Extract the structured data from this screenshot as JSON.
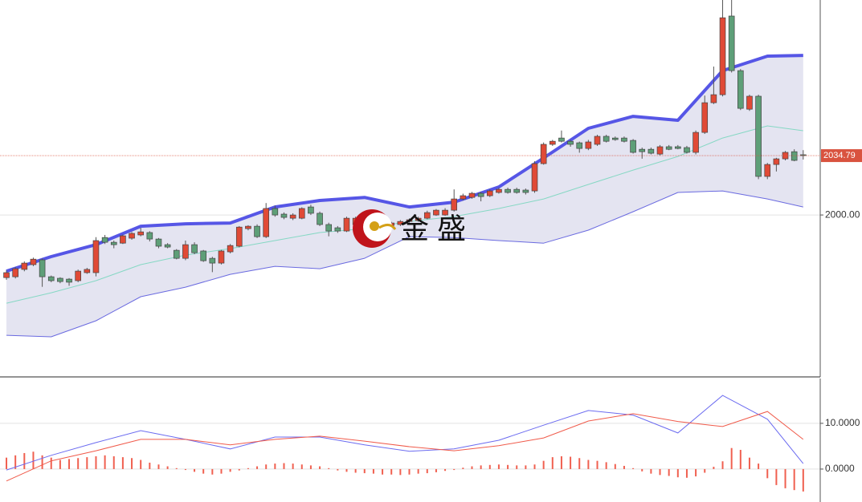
{
  "chart_data": [
    {
      "type": "candlestick",
      "watermark": "金 盛",
      "up_color": "#e04a36",
      "down_color": "#5e9f78",
      "open": [
        1963.3,
        1963.8,
        1968.1,
        1970.9,
        1973.7,
        1963.8,
        1962.9,
        1962.4,
        1961.5,
        1966.2,
        1966.2,
        1986.8,
        1984.0,
        1983.5,
        1986.4,
        1988.3,
        1989.7,
        1985.9,
        1982.6,
        1979.3,
        1974.6,
        1982.6,
        1978.9,
        1974.6,
        1971.8,
        1978.4,
        1981.7,
        1992.0,
        1993.4,
        1987.3,
        2003.8,
        2000.5,
        1998.1,
        1998.1,
        2004.7,
        2001.0,
        1994.4,
        1992.5,
        1990.6,
        1994.4,
        1996.7,
        1995.3,
        1993.4,
        1993.9,
        1994.4,
        1996.2,
        1996.7,
        1998.1,
        2000.0,
        2000.0,
        2002.8,
        2009.4,
        2010.3,
        2012.7,
        2011.3,
        2013.2,
        2015.0,
        2015.0,
        2014.6,
        2014.1,
        2030.1,
        2041.4,
        2045.1,
        2043.2,
        2042.3,
        2039.0,
        2041.4,
        2046.1,
        2045.1,
        2045.1,
        2043.7,
        2038.5,
        2038.5,
        2035.7,
        2040.0,
        2040.0,
        2039.5,
        2036.7,
        2048.4,
        2065.8,
        2070.5,
        2116.6,
        2084.6,
        2062.0,
        2069.6,
        2022.6,
        2029.6,
        2032.9,
        2037.1,
        2035.3
      ],
      "high": [
        1967.5,
        1969.5,
        1972.8,
        1975.0,
        1974.5,
        1964.5,
        1963.5,
        1963.0,
        1968.0,
        1969.0,
        1987.0,
        1988.3,
        1985.0,
        1988.5,
        1990.0,
        1992.5,
        1990.5,
        1986.5,
        1983.5,
        1980.0,
        1985.0,
        1984.0,
        1979.5,
        1975.5,
        1979.5,
        1983.0,
        1993.5,
        1994.0,
        1994.5,
        2007.0,
        2005.5,
        2001.5,
        2001.0,
        2004.5,
        2006.0,
        2002.0,
        1995.5,
        1993.5,
        1999.0,
        1999.0,
        1997.5,
        1996.0,
        1995.5,
        1996.0,
        1997.0,
        1998.0,
        1999.0,
        2002.5,
        2003.5,
        2004.0,
        2015.0,
        2012.5,
        2013.5,
        2013.5,
        2015.0,
        2016.0,
        2016.0,
        2016.0,
        2015.5,
        2031.5,
        2042.5,
        2044.0,
        2049.5,
        2044.0,
        2043.0,
        2044.0,
        2047.0,
        2047.0,
        2046.0,
        2046.0,
        2044.5,
        2039.5,
        2039.5,
        2041.0,
        2041.0,
        2041.0,
        2040.5,
        2049.5,
        2070.0,
        2087.0,
        2126.0,
        2126.0,
        2085.5,
        2070.5,
        2070.5,
        2030.5,
        2033.5,
        2037.5,
        2038.5,
        2038.0
      ],
      "low": [
        1962.0,
        1962.8,
        1967.0,
        1970.0,
        1957.9,
        1960.6,
        1960.0,
        1958.5,
        1960.6,
        1965.5,
        1964.0,
        1983.0,
        1980.5,
        1983.0,
        1985.5,
        1987.5,
        1984.5,
        1980.5,
        1980.5,
        1974.0,
        1973.5,
        1977.0,
        1972.5,
        1966.5,
        1971.0,
        1977.5,
        1981.0,
        1991.0,
        1986.5,
        1986.5,
        1999.0,
        1997.5,
        1997.0,
        1997.5,
        2000.0,
        1993.5,
        1987.5,
        1989.5,
        1990.0,
        1993.5,
        1993.5,
        1992.0,
        1992.5,
        1993.0,
        1993.5,
        1995.5,
        1996.0,
        1997.5,
        1999.5,
        1999.5,
        2002.0,
        2008.5,
        2009.5,
        2008.0,
        2010.5,
        2012.5,
        2012.5,
        2012.5,
        2012.0,
        2013.0,
        2029.5,
        2040.5,
        2042.5,
        2040.0,
        2036.5,
        2038.0,
        2040.5,
        2042.5,
        2043.5,
        2042.5,
        2036.0,
        2033.0,
        2035.5,
        2035.0,
        2038.0,
        2038.5,
        2036.0,
        2035.5,
        2047.5,
        2065.0,
        2069.5,
        2083.5,
        2061.5,
        2061.0,
        2021.0,
        2021.0,
        2025.5,
        2032.0,
        2031.5,
        2032.5
      ],
      "close": [
        1966.2,
        1968.5,
        1971.8,
        1974.1,
        1963.8,
        1961.5,
        1961.0,
        1960.6,
        1967.1,
        1968.1,
        1985.0,
        1984.0,
        1982.6,
        1987.8,
        1989.2,
        1990.1,
        1985.9,
        1981.7,
        1981.2,
        1974.6,
        1982.6,
        1977.9,
        1973.2,
        1971.8,
        1978.9,
        1982.1,
        1992.9,
        1993.4,
        1987.3,
        2003.8,
        2000.0,
        1998.6,
        2000.0,
        2003.8,
        2001.0,
        1994.4,
        1990.6,
        1990.6,
        1998.1,
        1998.1,
        1994.4,
        1992.9,
        1994.8,
        1995.3,
        1996.2,
        1997.2,
        1998.1,
        2001.4,
        2002.8,
        2002.8,
        2009.4,
        2011.3,
        2012.7,
        2010.8,
        2014.1,
        2015.0,
        2013.2,
        2013.2,
        2013.2,
        2030.1,
        2041.4,
        2043.2,
        2043.2,
        2041.4,
        2039.0,
        2042.8,
        2046.1,
        2043.2,
        2044.2,
        2043.2,
        2036.7,
        2037.1,
        2036.2,
        2040.0,
        2038.5,
        2039.0,
        2036.7,
        2048.4,
        2065.8,
        2070.5,
        2115.6,
        2084.6,
        2062.5,
        2069.6,
        2022.6,
        2029.6,
        2032.9,
        2036.7,
        2032.0,
        2034.79
      ],
      "band_fill": "#e4e4f1",
      "overlays": [
        {
          "color": "#5656e6",
          "width": 4,
          "x": [
            0,
            5,
            10,
            15,
            20,
            25,
            30,
            35,
            40,
            45,
            50,
            55,
            60,
            65,
            70,
            75,
            80,
            85,
            89
          ],
          "values": [
            1967.1,
            1975.6,
            1982.6,
            1993.4,
            1994.8,
            1995.3,
            2004.7,
            2008.5,
            2010.3,
            2004.7,
            2007.5,
            2016.4,
            2033.4,
            2050.8,
            2057.8,
            2055.5,
            2084.6,
            2093.1,
            2093.5
          ]
        },
        {
          "color": "#86d8c4",
          "width": 1,
          "x": [
            0,
            5,
            10,
            15,
            20,
            25,
            30,
            35,
            40,
            45,
            50,
            55,
            60,
            65,
            70,
            75,
            80,
            85,
            89
          ],
          "values": [
            1948.3,
            1954.4,
            1961.5,
            1970.9,
            1976.5,
            1980.3,
            1985.0,
            1989.7,
            1992.0,
            1996.2,
            1999.1,
            2003.8,
            2009.4,
            2017.9,
            2026.3,
            2034.3,
            2045.1,
            2052.2,
            2049.4
          ]
        },
        {
          "color": "#6a6ae0",
          "width": 1,
          "x": [
            0,
            5,
            10,
            15,
            20,
            25,
            30,
            35,
            40,
            45,
            50,
            55,
            60,
            65,
            70,
            75,
            80,
            85,
            89
          ],
          "values": [
            1929.5,
            1928.6,
            1938.0,
            1952.1,
            1957.7,
            1965.2,
            1969.9,
            1968.5,
            1974.6,
            1987.3,
            1986.8,
            1985.0,
            1983.5,
            1991.1,
            2001.9,
            2013.2,
            2014.1,
            2009.4,
            2004.7
          ]
        }
      ],
      "last_price": {
        "value": 2034.79,
        "label": "2034.79"
      },
      "last_price_color": "#d9533f",
      "xlim": [
        -0.72,
        90.9
      ],
      "ylim": [
        1905.1,
        2126
      ],
      "yticks": [
        {
          "value": 2000,
          "label": "2000.00"
        }
      ],
      "grid": true
    },
    {
      "type": "macd",
      "histogram": {
        "color": "#f06050",
        "values": [
          2.5,
          3.0,
          3.5,
          3.8,
          3.0,
          2.5,
          2.0,
          2.2,
          2.4,
          2.6,
          2.8,
          3.0,
          2.8,
          2.6,
          2.4,
          2.0,
          1.4,
          1.0,
          0.6,
          0.2,
          -0.2,
          -0.6,
          -1.0,
          -1.2,
          -1.0,
          -0.6,
          -0.3,
          0.2,
          0.6,
          1.0,
          1.2,
          1.3,
          1.2,
          1.0,
          0.8,
          0.6,
          0.2,
          -0.3,
          -0.6,
          -0.8,
          -0.9,
          -1.0,
          -1.2,
          -1.2,
          -1.3,
          -1.2,
          -1.0,
          -0.9,
          -0.7,
          -0.4,
          -0.2,
          0.3,
          0.6,
          0.8,
          0.9,
          1.0,
          0.9,
          0.8,
          0.8,
          1.0,
          1.8,
          2.6,
          2.8,
          2.7,
          2.4,
          2.0,
          1.8,
          1.5,
          1.1,
          0.7,
          0.2,
          -0.5,
          -1.0,
          -1.3,
          -1.5,
          -1.8,
          -1.9,
          -1.6,
          -0.8,
          0.5,
          1.7,
          4.6,
          4.2,
          2.5,
          1.2,
          -2.0,
          -3.5,
          -4.2,
          -4.6,
          -4.9
        ]
      },
      "lines": [
        {
          "color": "#6b6bf0",
          "x": [
            0,
            5,
            10,
            15,
            20,
            25,
            30,
            35,
            40,
            45,
            50,
            55,
            60,
            65,
            70,
            75,
            80,
            85,
            89
          ],
          "values": [
            -0.2,
            3.0,
            5.8,
            8.4,
            6.5,
            4.4,
            7.0,
            7.0,
            5.3,
            3.9,
            4.4,
            6.3,
            9.6,
            12.8,
            11.8,
            7.9,
            16.1,
            10.9,
            1.2
          ]
        },
        {
          "color": "#f05a4a",
          "x": [
            0,
            5,
            10,
            15,
            20,
            25,
            30,
            35,
            40,
            45,
            50,
            55,
            60,
            65,
            70,
            75,
            80,
            85,
            89
          ],
          "values": [
            -2.6,
            1.8,
            4.0,
            6.5,
            6.5,
            5.3,
            6.5,
            7.2,
            6.1,
            4.9,
            4.0,
            5.1,
            6.8,
            10.5,
            12.1,
            10.4,
            9.3,
            12.6,
            6.5
          ]
        }
      ],
      "xlim": [
        -0.72,
        90.9
      ],
      "ylim": [
        -7.2,
        19.8
      ],
      "yticks": [
        {
          "value": 0,
          "label": "0.0000"
        },
        {
          "value": 10,
          "label": "10.0000"
        }
      ],
      "grid": true
    }
  ]
}
